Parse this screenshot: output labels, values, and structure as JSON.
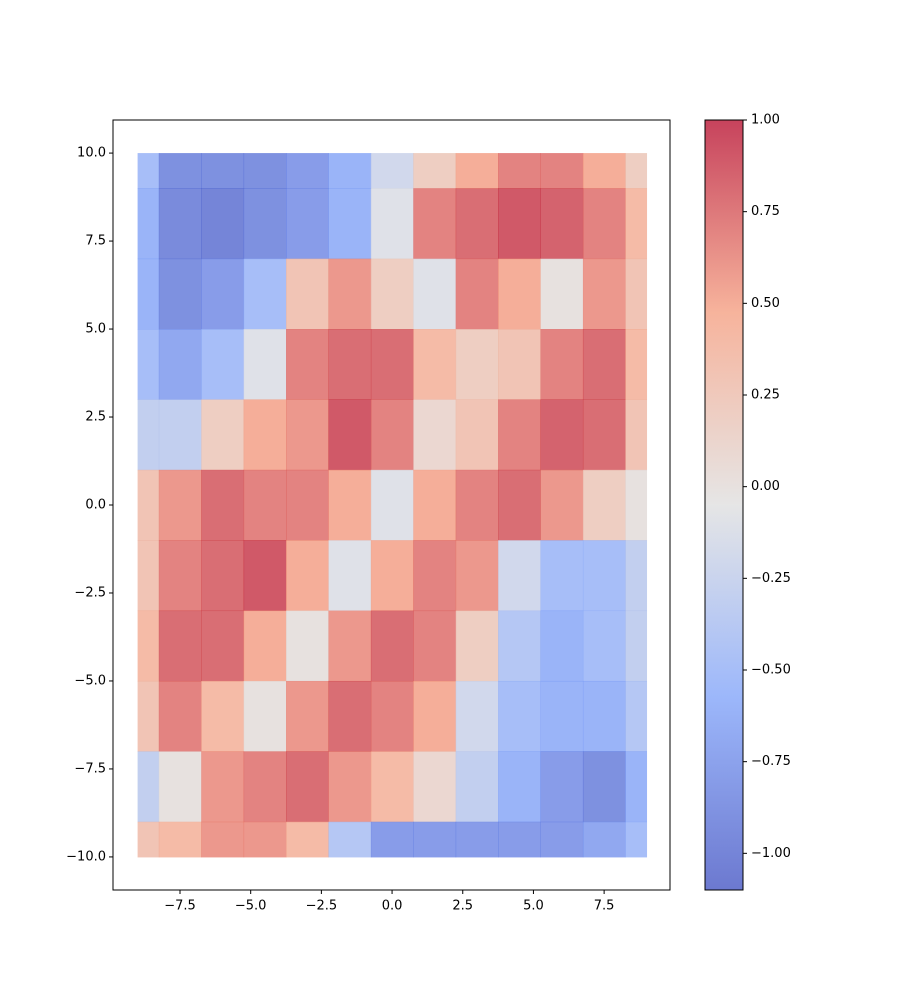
{
  "chart_data": {
    "type": "heatmap",
    "x": [
      -9,
      -7.5,
      -6,
      -4.5,
      -3,
      -1.5,
      0,
      1.5,
      3,
      4.5,
      6,
      7.5,
      9
    ],
    "y": [
      10,
      8,
      6,
      4,
      2,
      0,
      -2,
      -4,
      -6,
      -8,
      -10
    ],
    "values": [
      [
        -0.5,
        -0.9,
        -0.9,
        -0.9,
        -0.8,
        -0.6,
        -0.2,
        0.2,
        0.5,
        0.7,
        0.7,
        0.5,
        0.2
      ],
      [
        -0.6,
        -0.95,
        -1,
        -0.9,
        -0.8,
        -0.6,
        -0.1,
        0.7,
        0.8,
        0.9,
        0.85,
        0.7,
        0.4
      ],
      [
        -0.6,
        -0.9,
        -0.8,
        -0.5,
        0.3,
        0.6,
        0.2,
        -0.1,
        0.7,
        0.5,
        0.0,
        0.6,
        0.3
      ],
      [
        -0.5,
        -0.7,
        -0.5,
        -0.1,
        0.7,
        0.8,
        0.8,
        0.4,
        0.2,
        0.3,
        0.7,
        0.8,
        0.4
      ],
      [
        -0.3,
        -0.3,
        0.2,
        0.5,
        0.6,
        0.9,
        0.7,
        0.1,
        0.3,
        0.7,
        0.85,
        0.8,
        0.3
      ],
      [
        0.3,
        0.6,
        0.8,
        0.7,
        0.7,
        0.5,
        -0.1,
        0.5,
        0.7,
        0.8,
        0.6,
        0.2,
        0.0
      ],
      [
        0.3,
        0.7,
        0.8,
        0.9,
        0.5,
        -0.1,
        0.5,
        0.7,
        0.6,
        -0.2,
        -0.5,
        -0.5,
        -0.3
      ],
      [
        0.4,
        0.8,
        0.8,
        0.5,
        0.0,
        0.6,
        0.8,
        0.7,
        0.2,
        -0.4,
        -0.6,
        -0.5,
        -0.3
      ],
      [
        0.3,
        0.7,
        0.4,
        0.0,
        0.6,
        0.8,
        0.7,
        0.5,
        -0.2,
        -0.5,
        -0.6,
        -0.6,
        -0.4
      ],
      [
        -0.3,
        0.0,
        0.6,
        0.7,
        0.8,
        0.6,
        0.4,
        0.1,
        -0.3,
        -0.6,
        -0.8,
        -0.9,
        -0.6
      ],
      [
        0.3,
        0.4,
        0.6,
        0.6,
        0.4,
        -0.4,
        -0.8,
        -0.8,
        -0.8,
        -0.8,
        -0.8,
        -0.7,
        -0.5
      ]
    ],
    "colormap": "coolwarm",
    "alpha": 0.75,
    "xlim": [
      -9.87,
      9.83
    ],
    "ylim": [
      -10.94,
      10.94
    ],
    "clim": [
      -1.1,
      1.0
    ],
    "xticks": [
      {
        "value": -7.5,
        "label": "−7.5"
      },
      {
        "value": -5,
        "label": "−5.0"
      },
      {
        "value": -2.5,
        "label": "−2.5"
      },
      {
        "value": 0,
        "label": "0.0"
      },
      {
        "value": 2.5,
        "label": "2.5"
      },
      {
        "value": 5,
        "label": "5.0"
      },
      {
        "value": 7.5,
        "label": "7.5"
      }
    ],
    "yticks": [
      {
        "value": -10,
        "label": "−10.0"
      },
      {
        "value": -7.5,
        "label": "−7.5"
      },
      {
        "value": -5,
        "label": "−5.0"
      },
      {
        "value": -2.5,
        "label": "−2.5"
      },
      {
        "value": 0,
        "label": "0.0"
      },
      {
        "value": 2.5,
        "label": "2.5"
      },
      {
        "value": 5,
        "label": "5.0"
      },
      {
        "value": 7.5,
        "label": "7.5"
      },
      {
        "value": 10,
        "label": "10.0"
      }
    ],
    "cticks": [
      {
        "value": -1,
        "label": "−1.00"
      },
      {
        "value": -0.75,
        "label": "−0.75"
      },
      {
        "value": -0.5,
        "label": "−0.50"
      },
      {
        "value": -0.25,
        "label": "−0.25"
      },
      {
        "value": 0,
        "label": "0.00"
      },
      {
        "value": 0.25,
        "label": "0.25"
      },
      {
        "value": 0.5,
        "label": "0.50"
      },
      {
        "value": 0.75,
        "label": "0.75"
      },
      {
        "value": 1,
        "label": "1.00"
      }
    ]
  }
}
